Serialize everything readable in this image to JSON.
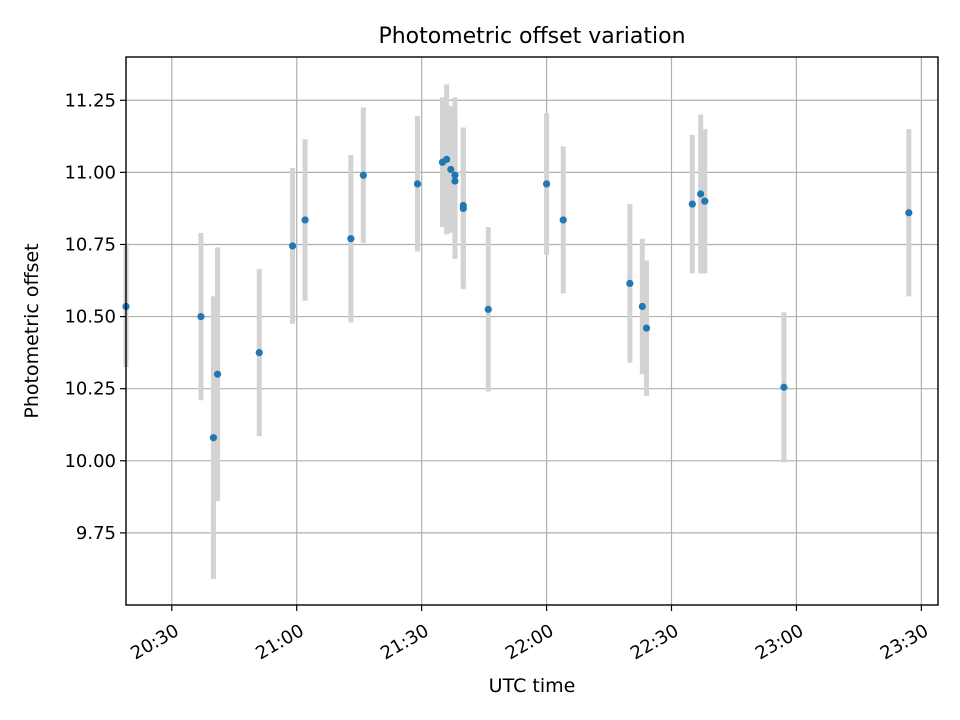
{
  "chart_data": {
    "type": "scatter",
    "title": "Photometric offset variation",
    "xlabel": "UTC time",
    "ylabel": "Photometric offset",
    "grid": true,
    "x_tick_labels": [
      "20:30",
      "21:00",
      "21:30",
      "22:00",
      "22:30",
      "23:00",
      "23:30"
    ],
    "x_tick_minutes": [
      1230,
      1260,
      1290,
      1320,
      1350,
      1380,
      1410
    ],
    "y_tick_labels": [
      "9.75",
      "10.00",
      "10.25",
      "10.50",
      "10.75",
      "11.00",
      "11.25"
    ],
    "y_tick_values": [
      9.75,
      10.0,
      10.25,
      10.5,
      10.75,
      11.0,
      11.25
    ],
    "xlim": [
      "20:19",
      "23:34"
    ],
    "ylim": [
      9.5,
      11.4
    ],
    "marker_color": "#1f77b4",
    "errorbar_color": "#d3d3d3",
    "series": [
      {
        "points": [
          {
            "x": "20:19",
            "y": 10.535,
            "err": 0.21
          },
          {
            "x": "20:37",
            "y": 10.5,
            "err": 0.29
          },
          {
            "x": "20:40",
            "y": 10.08,
            "err": 0.49
          },
          {
            "x": "20:41",
            "y": 10.3,
            "err": 0.44
          },
          {
            "x": "20:51",
            "y": 10.375,
            "err": 0.29
          },
          {
            "x": "20:59",
            "y": 10.745,
            "err": 0.27
          },
          {
            "x": "21:02",
            "y": 10.835,
            "err": 0.28
          },
          {
            "x": "21:13",
            "y": 10.77,
            "err": 0.29
          },
          {
            "x": "21:16",
            "y": 10.99,
            "err": 0.235
          },
          {
            "x": "21:29",
            "y": 10.96,
            "err": 0.235
          },
          {
            "x": "21:35",
            "y": 11.035,
            "err": 0.225
          },
          {
            "x": "21:36",
            "y": 11.045,
            "err": 0.26
          },
          {
            "x": "21:37",
            "y": 11.01,
            "err": 0.22
          },
          {
            "x": "21:38",
            "y": 10.97,
            "err": 0.27
          },
          {
            "x": "21:38",
            "y": 10.99,
            "err": 0.27
          },
          {
            "x": "21:40",
            "y": 10.885,
            "err": 0.27
          },
          {
            "x": "21:40",
            "y": 10.875,
            "err": 0.28
          },
          {
            "x": "21:46",
            "y": 10.525,
            "err": 0.285
          },
          {
            "x": "22:00",
            "y": 10.96,
            "err": 0.245
          },
          {
            "x": "22:04",
            "y": 10.835,
            "err": 0.255
          },
          {
            "x": "22:20",
            "y": 10.615,
            "err": 0.275
          },
          {
            "x": "22:23",
            "y": 10.535,
            "err": 0.235
          },
          {
            "x": "22:24",
            "y": 10.46,
            "err": 0.235
          },
          {
            "x": "22:35",
            "y": 10.89,
            "err": 0.24
          },
          {
            "x": "22:37",
            "y": 10.925,
            "err": 0.275
          },
          {
            "x": "22:38",
            "y": 10.9,
            "err": 0.25
          },
          {
            "x": "22:57",
            "y": 10.255,
            "err": 0.26
          },
          {
            "x": "23:27",
            "y": 10.86,
            "err": 0.29
          }
        ]
      }
    ]
  }
}
